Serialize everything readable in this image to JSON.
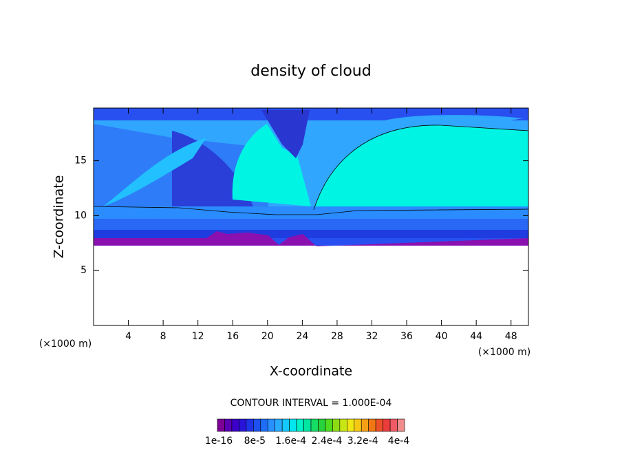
{
  "chart_data": {
    "type": "contour",
    "title": "density of cloud",
    "x_label": "X-coordinate",
    "y_label": "Z-coordinate",
    "x_unit": "(×1000 m)",
    "y_unit": "(×1000 m)",
    "xlim": [
      0,
      50
    ],
    "ylim": [
      0,
      19.8
    ],
    "xticks": [
      4,
      8,
      12,
      16,
      20,
      24,
      28,
      32,
      36,
      40,
      44,
      48
    ],
    "yticks": [
      5,
      10,
      15
    ],
    "contour_interval": "CONTOUR INTERVAL = 1.000E-04",
    "colorbar": {
      "colors": [
        "#7d0096",
        "#5a00b4",
        "#3c00c8",
        "#2814d8",
        "#1e32e6",
        "#1e50f0",
        "#1e6ef5",
        "#2890ff",
        "#28aaff",
        "#14c8ff",
        "#00e6f0",
        "#00f0c8",
        "#00e6a0",
        "#14dc64",
        "#28d23c",
        "#50dc1e",
        "#8cdc14",
        "#c8e614",
        "#f0e614",
        "#f5c814",
        "#f5a014",
        "#f07814",
        "#eb5028",
        "#eb3c3c",
        "#f05a64",
        "#f08c8c"
      ],
      "labels": [
        "1e-16",
        "8e-5",
        "1.6e-4",
        "2.4e-4",
        "3.2e-4",
        "4e-4"
      ]
    }
  }
}
